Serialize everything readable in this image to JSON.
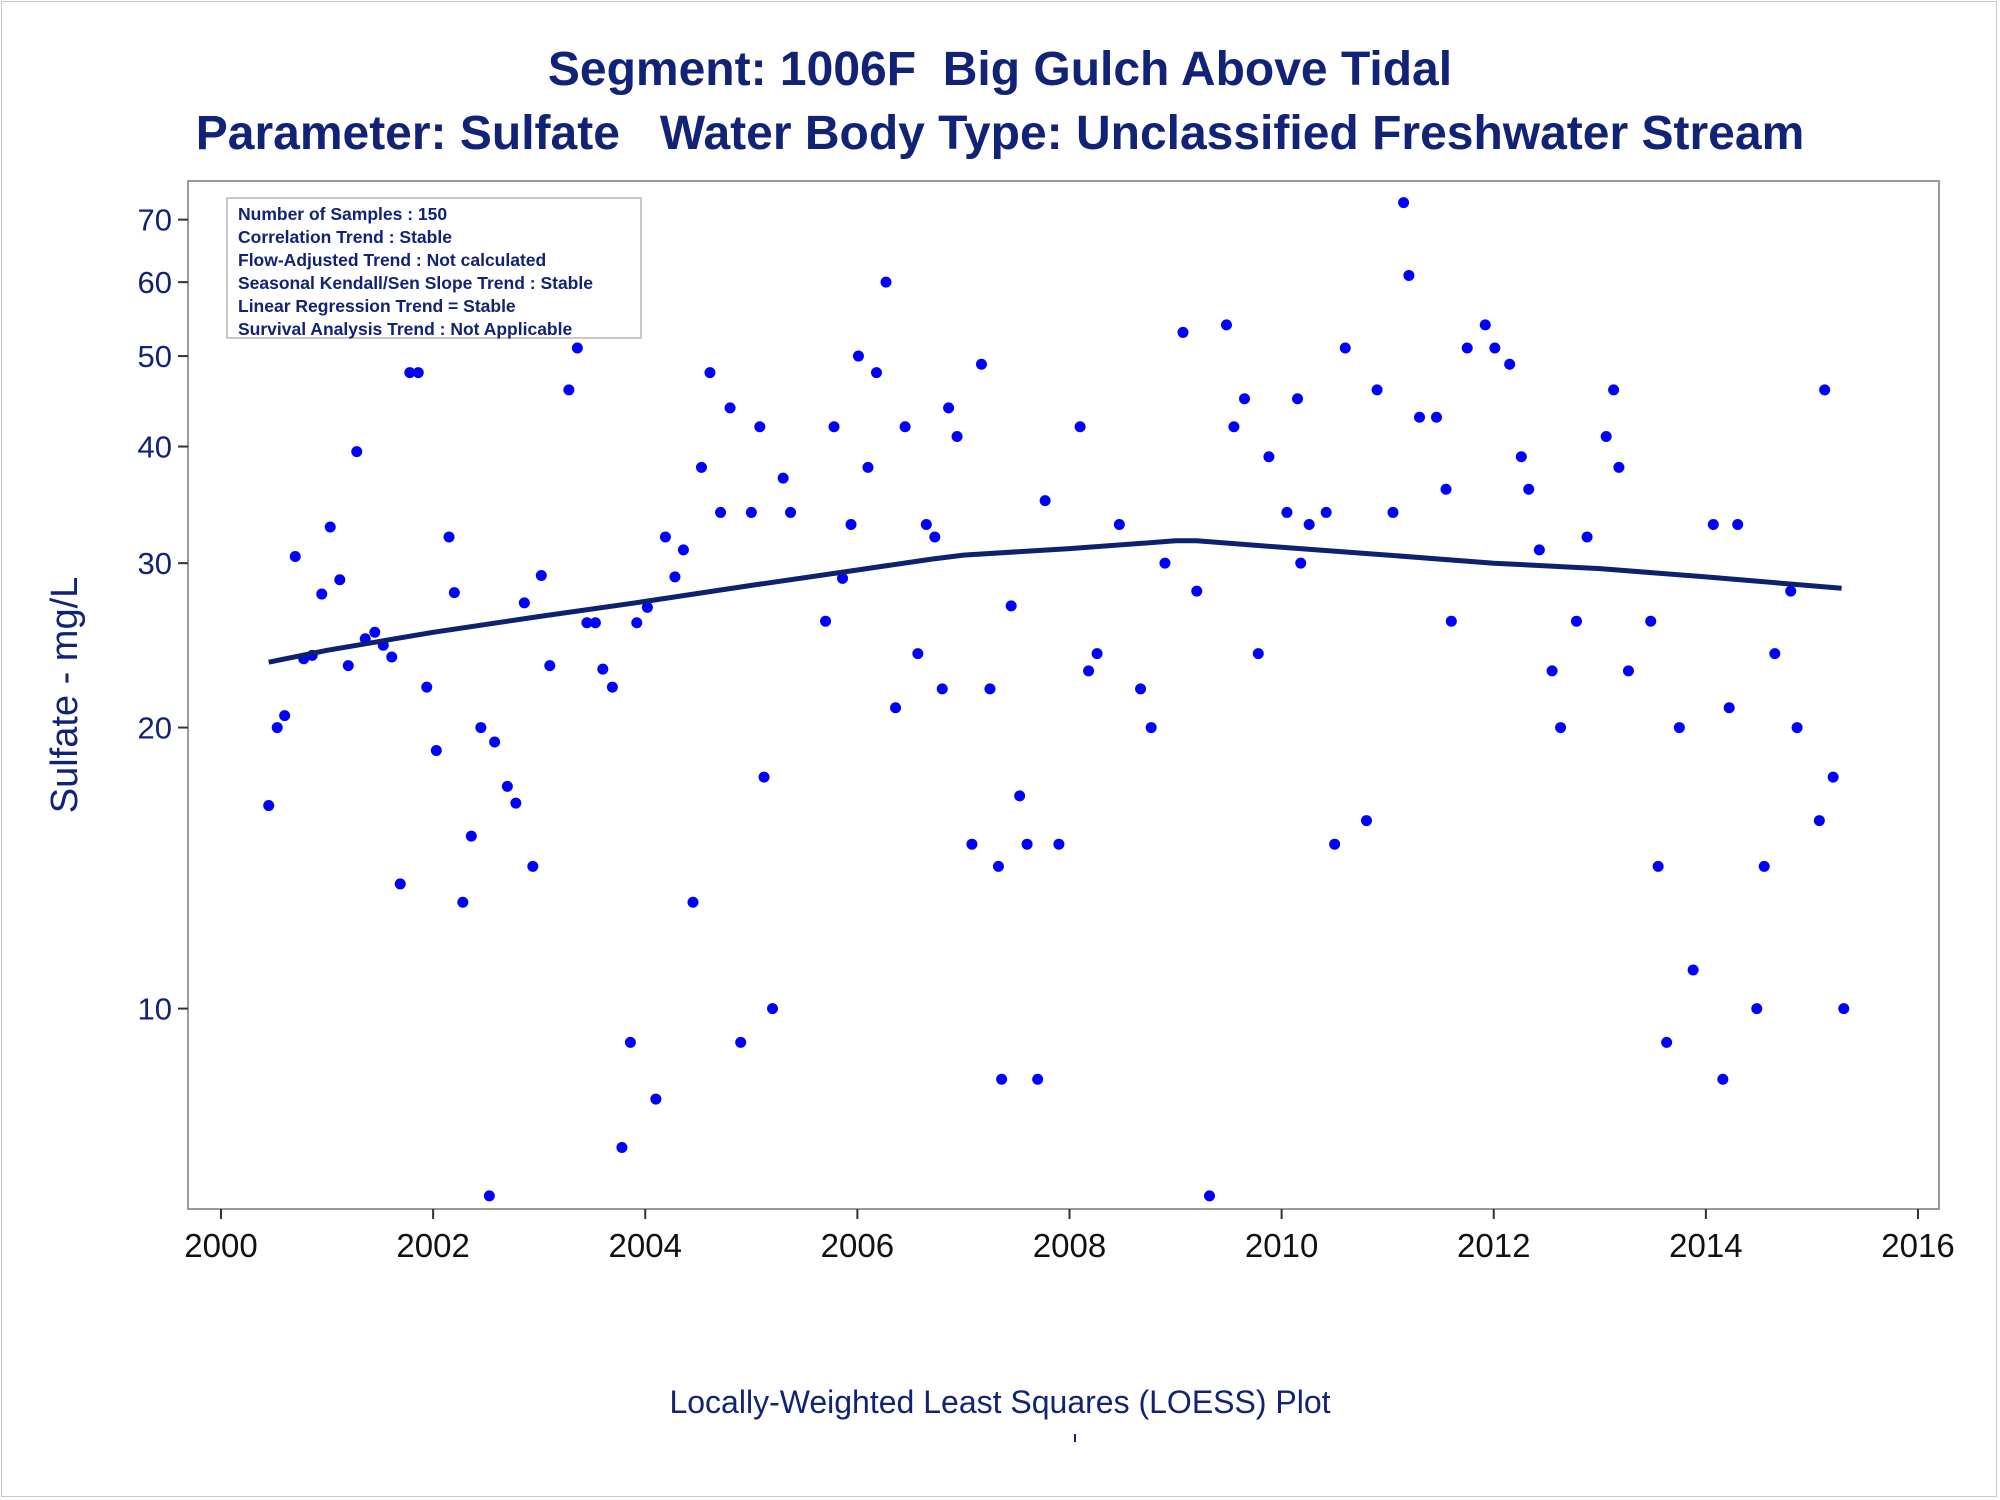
{
  "title": "Segment: 1006F  Big Gulch Above Tidal",
  "subtitle": "Parameter: Sulfate   Water Body Type: Unclassified Freshwater Stream",
  "stats": [
    "Number of Samples : 150",
    "Correlation Trend : Stable",
    "Flow-Adjusted Trend : Not calculated",
    "Seasonal Kendall/Sen Slope Trend : Stable",
    "Linear Regression Trend = Stable",
    "Survival Analysis Trend : Not Applicable"
  ],
  "footnote": "Locally-Weighted Least Squares (LOESS) Plot",
  "colors": {
    "text": "#112277",
    "points": "#0000ff",
    "loess": "#0d2170",
    "axis": "#9a9a9a"
  },
  "chart_data": {
    "type": "scatter",
    "ylabel": "Sulfate - mg/L",
    "xlabel": "",
    "yscale": "log",
    "xlim": [
      2000,
      2016
    ],
    "ylim": [
      6.1,
      77
    ],
    "xticks": [
      2000,
      2002,
      2004,
      2006,
      2008,
      2010,
      2012,
      2014,
      2016
    ],
    "xtick_labels": [
      "2000",
      "2002",
      "2004",
      "2006",
      "2008",
      "2010",
      "2012",
      "2014",
      "2016"
    ],
    "yticks": [
      10,
      20,
      30,
      40,
      50,
      60,
      70
    ],
    "ytick_labels": [
      "10",
      "20",
      "30",
      "40",
      "50",
      "60",
      "70"
    ],
    "grid": false,
    "series": [
      {
        "type": "scatter",
        "points": [
          [
            2000.45,
            16.5
          ],
          [
            2000.53,
            20
          ],
          [
            2000.6,
            20.6
          ],
          [
            2000.7,
            30.5
          ],
          [
            2000.78,
            23.7
          ],
          [
            2000.86,
            23.9
          ],
          [
            2000.95,
            27.8
          ],
          [
            2001.03,
            32.8
          ],
          [
            2001.12,
            28.8
          ],
          [
            2001.2,
            23.3
          ],
          [
            2001.28,
            39.5
          ],
          [
            2001.36,
            24.9
          ],
          [
            2001.45,
            25.3
          ],
          [
            2001.53,
            24.5
          ],
          [
            2001.61,
            23.8
          ],
          [
            2001.69,
            13.6
          ],
          [
            2001.78,
            48
          ],
          [
            2001.86,
            48
          ],
          [
            2001.94,
            22.1
          ],
          [
            2002.03,
            18.9
          ],
          [
            2002.15,
            32
          ],
          [
            2002.2,
            27.9
          ],
          [
            2002.28,
            13
          ],
          [
            2002.36,
            15.3
          ],
          [
            2002.45,
            20
          ],
          [
            2002.53,
            6.3
          ],
          [
            2002.58,
            19.3
          ],
          [
            2002.7,
            17.3
          ],
          [
            2002.78,
            16.6
          ],
          [
            2002.86,
            27.2
          ],
          [
            2002.94,
            14.2
          ],
          [
            2003.02,
            29.1
          ],
          [
            2003.1,
            23.3
          ],
          [
            2003.28,
            46
          ],
          [
            2003.36,
            51
          ],
          [
            2003.45,
            25.9
          ],
          [
            2003.53,
            25.9
          ],
          [
            2003.6,
            23.1
          ],
          [
            2003.69,
            22.1
          ],
          [
            2003.78,
            7.1
          ],
          [
            2003.86,
            9.2
          ],
          [
            2003.92,
            25.9
          ],
          [
            2004.02,
            26.9
          ],
          [
            2004.1,
            8
          ],
          [
            2004.19,
            32
          ],
          [
            2004.28,
            29
          ],
          [
            2004.36,
            31
          ],
          [
            2004.45,
            13
          ],
          [
            2004.53,
            38
          ],
          [
            2004.61,
            48
          ],
          [
            2004.71,
            34
          ],
          [
            2004.8,
            44
          ],
          [
            2004.9,
            9.2
          ],
          [
            2005.0,
            34
          ],
          [
            2005.08,
            42
          ],
          [
            2005.12,
            17.7
          ],
          [
            2005.2,
            10
          ],
          [
            2005.3,
            37
          ],
          [
            2005.37,
            34
          ],
          [
            2005.7,
            26
          ],
          [
            2005.78,
            42
          ],
          [
            2005.86,
            28.9
          ],
          [
            2005.94,
            33
          ],
          [
            2006.01,
            50
          ],
          [
            2006.1,
            38
          ],
          [
            2006.18,
            48
          ],
          [
            2006.27,
            60
          ],
          [
            2006.36,
            21
          ],
          [
            2006.45,
            42
          ],
          [
            2006.57,
            24
          ],
          [
            2006.65,
            33
          ],
          [
            2006.73,
            32
          ],
          [
            2006.8,
            22
          ],
          [
            2006.86,
            44
          ],
          [
            2006.94,
            41
          ],
          [
            2007.08,
            15
          ],
          [
            2007.17,
            49
          ],
          [
            2007.25,
            22
          ],
          [
            2007.33,
            14.2
          ],
          [
            2007.36,
            8.4
          ],
          [
            2007.45,
            27
          ],
          [
            2007.53,
            16.9
          ],
          [
            2007.6,
            15
          ],
          [
            2007.7,
            8.4
          ],
          [
            2007.77,
            35
          ],
          [
            2007.9,
            15
          ],
          [
            2008.1,
            42
          ],
          [
            2008.18,
            23
          ],
          [
            2008.26,
            24
          ],
          [
            2008.47,
            33
          ],
          [
            2008.67,
            22
          ],
          [
            2008.77,
            20
          ],
          [
            2008.9,
            30
          ],
          [
            2009.07,
            53
          ],
          [
            2009.2,
            28
          ],
          [
            2009.32,
            6.3
          ],
          [
            2009.48,
            54
          ],
          [
            2009.55,
            42
          ],
          [
            2009.65,
            45
          ],
          [
            2009.78,
            24
          ],
          [
            2009.88,
            39
          ],
          [
            2010.05,
            34
          ],
          [
            2010.15,
            45
          ],
          [
            2010.18,
            30
          ],
          [
            2010.26,
            33
          ],
          [
            2010.42,
            34
          ],
          [
            2010.5,
            15
          ],
          [
            2010.6,
            51
          ],
          [
            2010.8,
            15.9
          ],
          [
            2010.9,
            46
          ],
          [
            2011.05,
            34
          ],
          [
            2011.15,
            73
          ],
          [
            2011.2,
            61
          ],
          [
            2011.3,
            43
          ],
          [
            2011.46,
            43
          ],
          [
            2011.55,
            36
          ],
          [
            2011.6,
            26
          ],
          [
            2011.75,
            51
          ],
          [
            2011.92,
            54
          ],
          [
            2012.01,
            51
          ],
          [
            2012.15,
            49
          ],
          [
            2012.26,
            39
          ],
          [
            2012.33,
            36
          ],
          [
            2012.43,
            31
          ],
          [
            2012.55,
            23
          ],
          [
            2012.63,
            20
          ],
          [
            2012.78,
            26
          ],
          [
            2012.88,
            32
          ],
          [
            2013.06,
            41
          ],
          [
            2013.13,
            46
          ],
          [
            2013.18,
            38
          ],
          [
            2013.27,
            23
          ],
          [
            2013.48,
            26
          ],
          [
            2013.55,
            14.2
          ],
          [
            2013.63,
            9.2
          ],
          [
            2013.75,
            20
          ],
          [
            2013.88,
            11
          ],
          [
            2014.07,
            33
          ],
          [
            2014.16,
            8.4
          ],
          [
            2014.22,
            21
          ],
          [
            2014.3,
            33
          ],
          [
            2014.48,
            10
          ],
          [
            2014.55,
            14.2
          ],
          [
            2014.65,
            24
          ],
          [
            2014.8,
            28
          ],
          [
            2014.86,
            20
          ],
          [
            2015.07,
            15.9
          ],
          [
            2015.12,
            46
          ],
          [
            2015.2,
            17.7
          ],
          [
            2015.3,
            10
          ]
        ]
      },
      {
        "type": "line",
        "points": [
          [
            2000.45,
            23.5
          ],
          [
            2001.0,
            24.2
          ],
          [
            2002.0,
            25.3
          ],
          [
            2003.0,
            26.3
          ],
          [
            2004.0,
            27.3
          ],
          [
            2005.0,
            28.4
          ],
          [
            2006.0,
            29.5
          ],
          [
            2006.7,
            30.3
          ],
          [
            2007.0,
            30.6
          ],
          [
            2008.0,
            31.1
          ],
          [
            2009.0,
            31.7
          ],
          [
            2009.2,
            31.7
          ],
          [
            2010.0,
            31.2
          ],
          [
            2011.0,
            30.6
          ],
          [
            2012.0,
            30.0
          ],
          [
            2013.0,
            29.6
          ],
          [
            2014.0,
            29.0
          ],
          [
            2015.28,
            28.2
          ]
        ]
      }
    ]
  }
}
